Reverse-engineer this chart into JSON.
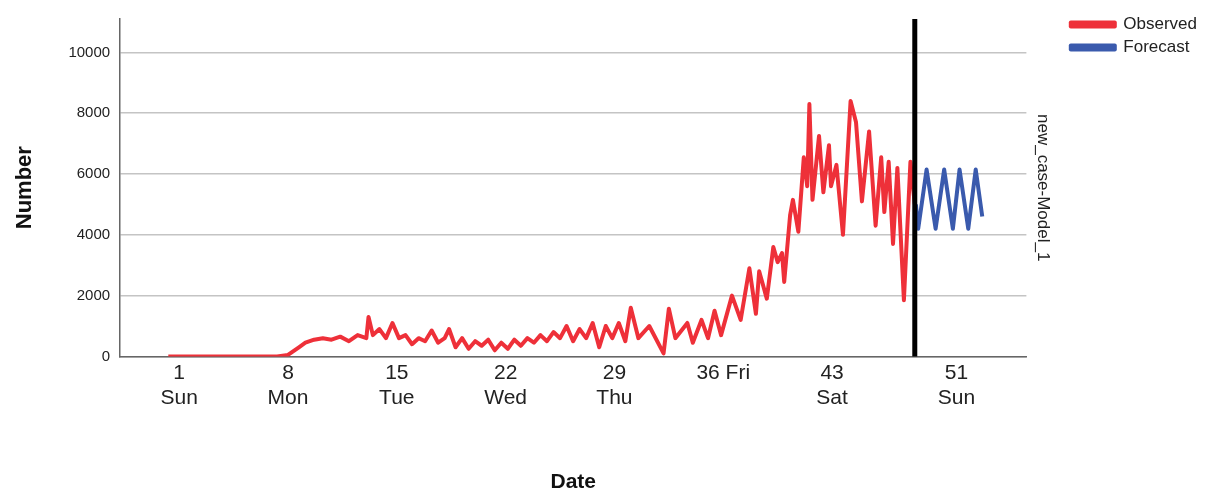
{
  "chart_data": {
    "type": "line",
    "xlabel": "Date",
    "ylabel": "Number",
    "y2label": "new_case-Model_1",
    "xlim": [
      -2.8,
      55.5
    ],
    "xticks": [
      {
        "value": 1,
        "label": "1\nSun"
      },
      {
        "value": 8,
        "label": "8\nMon"
      },
      {
        "value": 15,
        "label": "15\nTue"
      },
      {
        "value": 22,
        "label": "22\nWed"
      },
      {
        "value": 29,
        "label": "29\nThu"
      },
      {
        "value": 36,
        "label": "36 Fri"
      },
      {
        "value": 43,
        "label": "43\nSat"
      },
      {
        "value": 51,
        "label": "51\nSun"
      }
    ],
    "ylim": [
      0,
      11100
    ],
    "yticks": [
      0,
      2000,
      4000,
      6000,
      8000,
      10000
    ],
    "grid": "y",
    "legend": "top right",
    "line_style": "solid",
    "marker": "none",
    "ref_lines": [
      {
        "axis": "x",
        "value": 48.32,
        "color": "#000000"
      }
    ],
    "series": [
      {
        "name": "Observed",
        "color": "#ee3039",
        "x": [
          0.3,
          2.4,
          3.8,
          5.2,
          6.6,
          7.3,
          8,
          8.7,
          9.12,
          9.68,
          10.24,
          10.8,
          11.36,
          11.92,
          12.48,
          13.04,
          13.18,
          13.46,
          13.88,
          14.3,
          14.72,
          15.14,
          15.56,
          15.98,
          16.4,
          16.82,
          17.24,
          17.66,
          18.08,
          18.36,
          18.78,
          19.2,
          19.62,
          20.04,
          20.46,
          20.88,
          21.3,
          21.72,
          22.14,
          22.56,
          22.98,
          23.4,
          23.82,
          24.24,
          24.66,
          25.08,
          25.5,
          25.92,
          26.34,
          26.76,
          27.18,
          27.6,
          28.02,
          28.44,
          28.86,
          29.28,
          29.7,
          30.05,
          30.54,
          31.24,
          32.16,
          32.5,
          32.92,
          33.69,
          34.04,
          34.6,
          35.02,
          35.44,
          35.86,
          36.56,
          37.12,
          37.68,
          38.1,
          38.31,
          38.8,
          39.22,
          39.5,
          39.78,
          39.92,
          40.3,
          40.48,
          40.83,
          41.18,
          41.4,
          41.54,
          41.74,
          42.16,
          42.44,
          42.8,
          42.93,
          43.28,
          43.7,
          44.19,
          44.54,
          44.92,
          45.38,
          45.8,
          46.16,
          46.36,
          46.64,
          46.92,
          47.2,
          47.62,
          48.04,
          48.32
        ],
        "values": [
          0,
          0,
          0,
          0,
          0,
          0,
          50,
          300,
          450,
          550,
          600,
          550,
          650,
          500,
          700,
          600,
          1300,
          700,
          900,
          600,
          1100,
          600,
          700,
          400,
          600,
          500,
          850,
          450,
          600,
          900,
          300,
          600,
          250,
          500,
          350,
          550,
          200,
          450,
          250,
          550,
          350,
          600,
          450,
          700,
          500,
          800,
          600,
          1000,
          500,
          900,
          600,
          1100,
          300,
          1000,
          600,
          1100,
          500,
          1600,
          600,
          1000,
          100,
          1570,
          600,
          1100,
          450,
          1200,
          600,
          1500,
          700,
          2000,
          1200,
          2900,
          1400,
          2800,
          1900,
          3600,
          3100,
          3400,
          2450,
          4650,
          5150,
          4100,
          6550,
          5600,
          8300,
          5150,
          7250,
          5400,
          6950,
          5600,
          6300,
          4000,
          8400,
          7700,
          5100,
          7400,
          4300,
          6550,
          4750,
          6400,
          3700,
          6200,
          1850,
          6400,
          5000
        ]
      },
      {
        "name": "Forecast",
        "color": "#3a5aad",
        "x": [
          48.39,
          48.54,
          49.08,
          49.66,
          50.21,
          50.77,
          51.2,
          51.76,
          52.24,
          52.66
        ],
        "values": [
          5000,
          4200,
          6150,
          4200,
          6150,
          4200,
          6150,
          4200,
          6150,
          4600
        ]
      }
    ]
  }
}
